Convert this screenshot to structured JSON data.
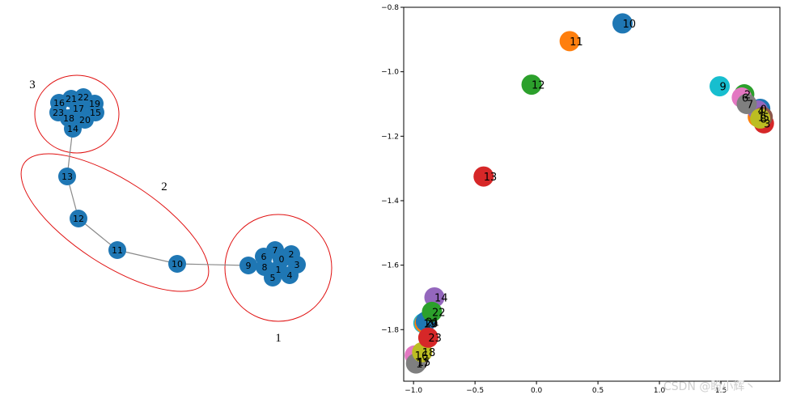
{
  "watermark": "CSDN @盼小辉丶",
  "chart_data": [
    {
      "type": "network",
      "clusters": [
        {
          "label": "1",
          "nodes": [
            "0",
            "1",
            "2",
            "3",
            "4",
            "5",
            "6",
            "7",
            "8",
            "9"
          ]
        },
        {
          "label": "2",
          "nodes": [
            "10",
            "11",
            "12",
            "13"
          ]
        },
        {
          "label": "3",
          "nodes": [
            "14",
            "15",
            "16",
            "17",
            "18",
            "19",
            "20",
            "21",
            "22",
            "23"
          ]
        }
      ],
      "edges": [
        [
          "9",
          "10"
        ],
        [
          "10",
          "11"
        ],
        [
          "11",
          "12"
        ],
        [
          "12",
          "13"
        ],
        [
          "13",
          "14"
        ]
      ]
    },
    {
      "type": "scatter",
      "xlim": [
        -1.08,
        1.98
      ],
      "ylim": [
        -1.96,
        -0.8
      ],
      "xticks": [
        -1.0,
        -0.5,
        0.0,
        0.5,
        1.0,
        1.5
      ],
      "yticks": [
        -0.8,
        -1.0,
        -1.2,
        -1.4,
        -1.6,
        -1.8
      ],
      "grid": false,
      "points": [
        {
          "label": "0",
          "x": 1.82,
          "y": -1.115,
          "color": "#1f77b4"
        },
        {
          "label": "1",
          "x": 1.8,
          "y": -1.14,
          "color": "#ff7f0e"
        },
        {
          "label": "2",
          "x": 1.69,
          "y": -1.07,
          "color": "#2ca02c"
        },
        {
          "label": "3",
          "x": 1.85,
          "y": -1.16,
          "color": "#d62728"
        },
        {
          "label": "4",
          "x": 1.8,
          "y": -1.12,
          "color": "#9467bd"
        },
        {
          "label": "5",
          "x": 1.84,
          "y": -1.14,
          "color": "#8c564b"
        },
        {
          "label": "6",
          "x": 1.67,
          "y": -1.08,
          "color": "#e377c2"
        },
        {
          "label": "7",
          "x": 1.71,
          "y": -1.1,
          "color": "#7f7f7f"
        },
        {
          "label": "8",
          "x": 1.82,
          "y": -1.145,
          "color": "#bcbd22"
        },
        {
          "label": "9",
          "x": 1.49,
          "y": -1.045,
          "color": "#17becf"
        },
        {
          "label": "10",
          "x": 0.7,
          "y": -0.85,
          "color": "#1f77b4"
        },
        {
          "label": "11",
          "x": 0.27,
          "y": -0.905,
          "color": "#ff7f0e"
        },
        {
          "label": "12",
          "x": -0.04,
          "y": -1.04,
          "color": "#2ca02c"
        },
        {
          "label": "13",
          "x": -0.43,
          "y": -1.325,
          "color": "#d62728"
        },
        {
          "label": "14",
          "x": -0.83,
          "y": -1.7,
          "color": "#9467bd"
        },
        {
          "label": "15",
          "x": -0.97,
          "y": -1.9,
          "color": "#8c564b"
        },
        {
          "label": "16",
          "x": -0.99,
          "y": -1.88,
          "color": "#e377c2"
        },
        {
          "label": "17",
          "x": -0.98,
          "y": -1.905,
          "color": "#7f7f7f"
        },
        {
          "label": "18",
          "x": -0.93,
          "y": -1.87,
          "color": "#bcbd22"
        },
        {
          "label": "19",
          "x": -0.92,
          "y": -1.78,
          "color": "#17becf"
        },
        {
          "label": "20",
          "x": -0.91,
          "y": -1.78,
          "color": "#ff7f0e"
        },
        {
          "label": "21",
          "x": -0.9,
          "y": -1.775,
          "color": "#1f77b4"
        },
        {
          "label": "22",
          "x": -0.85,
          "y": -1.745,
          "color": "#2ca02c"
        },
        {
          "label": "23",
          "x": -0.88,
          "y": -1.825,
          "color": "#d62728"
        }
      ]
    }
  ]
}
